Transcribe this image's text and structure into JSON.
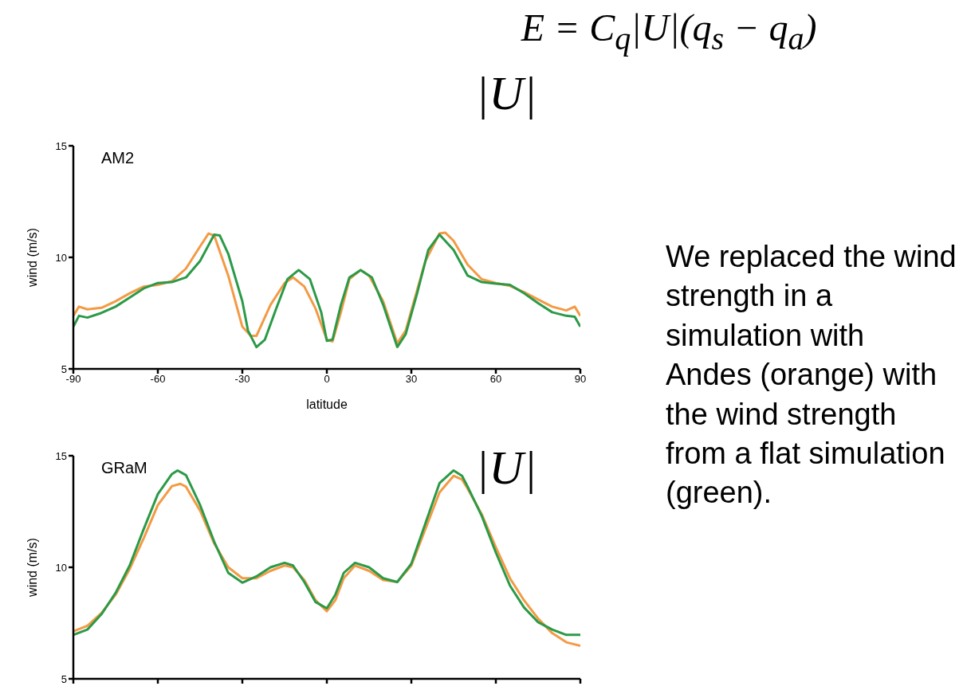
{
  "chart_data": [
    {
      "type": "line",
      "title": "AM2",
      "xlabel": "latitude",
      "ylabel": "wind (m/s)",
      "xlim": [
        -90,
        90
      ],
      "xticks": [
        -90,
        -60,
        -30,
        0,
        30,
        60,
        90
      ],
      "ylim": [
        5,
        15
      ],
      "yticks": [
        5,
        10,
        15
      ],
      "grid": false,
      "marker": "none",
      "line_style": "solid",
      "annotations": [
        "E = C$_{q}$|U|(q$_{s}$ − q$_{a}$)",
        "|U|",
        "We replaced the wind strength in a simulation with Andes (orange) with the wind strength from a flat simulation (green)."
      ],
      "series": [
        {
          "color": "#f39a45",
          "x": [
            -90,
            -88,
            -85,
            -80,
            -75,
            -70,
            -65,
            -60,
            -55,
            -50,
            -45,
            -42,
            -40,
            -35,
            -30,
            -27,
            -25,
            -20,
            -15,
            -12,
            -8,
            -4,
            0,
            2,
            5,
            8,
            12,
            15,
            20,
            25,
            28,
            30,
            35,
            40,
            42,
            45,
            50,
            55,
            60,
            65,
            70,
            75,
            80,
            85,
            88,
            90
          ],
          "values": [
            7.38,
            7.79,
            7.67,
            7.74,
            8.03,
            8.39,
            8.69,
            8.77,
            8.93,
            9.5,
            10.49,
            11.07,
            10.98,
            9.18,
            6.89,
            6.48,
            6.48,
            7.87,
            8.85,
            9.1,
            8.69,
            7.7,
            6.31,
            6.23,
            7.54,
            9.02,
            9.43,
            9.18,
            8.03,
            6.15,
            6.72,
            7.62,
            9.84,
            11.07,
            11.11,
            10.74,
            9.67,
            9.02,
            8.85,
            8.72,
            8.44,
            8.11,
            7.79,
            7.62,
            7.79,
            7.38
          ]
        },
        {
          "color": "#2b9a48",
          "x": [
            -90,
            -88,
            -85,
            -80,
            -75,
            -70,
            -65,
            -60,
            -55,
            -50,
            -45,
            -40,
            -38,
            -35,
            -30,
            -28,
            -25,
            -22,
            -18,
            -14,
            -10,
            -6,
            -2,
            0,
            2,
            5,
            8,
            12,
            16,
            20,
            25,
            28,
            32,
            36,
            40,
            45,
            50,
            55,
            60,
            65,
            70,
            75,
            80,
            85,
            88,
            90
          ],
          "values": [
            6.89,
            7.38,
            7.3,
            7.51,
            7.79,
            8.2,
            8.61,
            8.85,
            8.89,
            9.1,
            9.84,
            11.02,
            10.98,
            10.16,
            8.03,
            6.72,
            5.98,
            6.31,
            7.7,
            9.02,
            9.43,
            9.02,
            7.54,
            6.26,
            6.31,
            7.87,
            9.1,
            9.43,
            9.1,
            7.87,
            5.98,
            6.56,
            8.36,
            10.33,
            11.02,
            10.33,
            9.18,
            8.89,
            8.82,
            8.77,
            8.39,
            7.95,
            7.54,
            7.38,
            7.34,
            6.89
          ]
        }
      ]
    },
    {
      "type": "line",
      "title": "GRaM",
      "ylabel": "wind (m/s)",
      "xlim": [
        -90,
        90
      ],
      "xticks": [
        {
          "value": -90,
          "label": null
        },
        {
          "value": -60,
          "label": null
        },
        {
          "value": -30,
          "label": null
        },
        {
          "value": 0,
          "label": null
        },
        {
          "value": 30,
          "label": null
        },
        {
          "value": 60,
          "label": null
        },
        {
          "value": 90,
          "label": null
        }
      ],
      "ylim": [
        5,
        15
      ],
      "yticks": [
        5,
        10,
        15
      ],
      "tick_labels": "y",
      "grid": false,
      "marker": "none",
      "line_style": "solid",
      "annotations": [
        "|U|"
      ],
      "series": [
        {
          "color": "#f39a45",
          "x": [
            -90,
            -85,
            -80,
            -75,
            -70,
            -65,
            -60,
            -55,
            -52,
            -50,
            -45,
            -40,
            -35,
            -30,
            -25,
            -20,
            -15,
            -12,
            -8,
            -4,
            0,
            3,
            6,
            10,
            15,
            20,
            25,
            30,
            35,
            40,
            45,
            48,
            50,
            55,
            60,
            65,
            70,
            75,
            80,
            85,
            90
          ],
          "values": [
            7.13,
            7.38,
            7.95,
            8.77,
            9.92,
            11.31,
            12.79,
            13.64,
            13.74,
            13.61,
            12.54,
            11.07,
            10.0,
            9.51,
            9.51,
            9.84,
            10.08,
            10.0,
            9.43,
            8.52,
            8.03,
            8.52,
            9.51,
            10.08,
            9.84,
            9.43,
            9.34,
            10.08,
            11.72,
            13.36,
            14.1,
            13.93,
            13.52,
            12.38,
            10.9,
            9.51,
            8.52,
            7.7,
            7.05,
            6.64,
            6.48
          ]
        },
        {
          "color": "#2b9a48",
          "x": [
            -90,
            -85,
            -80,
            -75,
            -70,
            -65,
            -60,
            -55,
            -53,
            -50,
            -45,
            -40,
            -35,
            -30,
            -25,
            -20,
            -15,
            -12,
            -8,
            -4,
            0,
            3,
            6,
            10,
            15,
            20,
            25,
            30,
            35,
            40,
            45,
            48,
            50,
            55,
            60,
            65,
            70,
            75,
            80,
            85,
            90
          ],
          "values": [
            6.97,
            7.21,
            7.9,
            8.85,
            10.08,
            11.72,
            13.28,
            14.18,
            14.34,
            14.13,
            12.79,
            11.15,
            9.75,
            9.31,
            9.59,
            10.0,
            10.2,
            10.08,
            9.34,
            8.44,
            8.16,
            8.77,
            9.75,
            10.2,
            10.0,
            9.51,
            9.34,
            10.16,
            11.97,
            13.77,
            14.34,
            14.1,
            13.61,
            12.3,
            10.66,
            9.18,
            8.2,
            7.54,
            7.21,
            6.97,
            6.97
          ]
        }
      ]
    }
  ]
}
